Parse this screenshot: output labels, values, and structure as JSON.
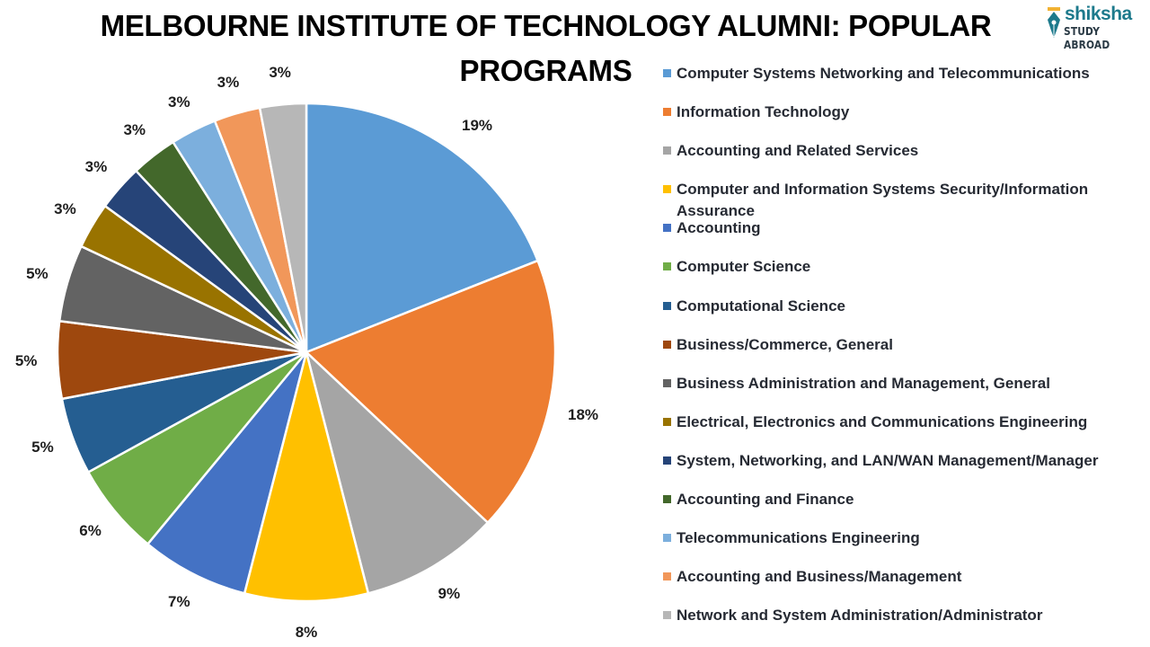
{
  "header": {
    "title": "MELBOURNE INSTITUTE OF TECHNOLOGY ALUMNI: POPULAR PROGRAMS",
    "logo": {
      "brand": "shiksha",
      "sub": "STUDY ABROAD",
      "icon": "pen-nib-icon"
    }
  },
  "chart_data": {
    "type": "pie",
    "title": "MELBOURNE INSTITUTE OF TECHNOLOGY ALUMNI: POPULAR PROGRAMS",
    "legend_position": "right",
    "start_angle_deg": 0,
    "direction": "clockwise",
    "categories": [
      "Computer Systems Networking and Telecommunications",
      "Information Technology",
      "Accounting and Related Services",
      "Computer and Information Systems Security/Information Assurance",
      "Accounting",
      "Computer Science",
      "Computational Science",
      "Business/Commerce, General",
      "Business Administration and Management, General",
      "Electrical, Electronics and Communications Engineering",
      "System, Networking, and LAN/WAN Management/Manager",
      "Accounting and Finance",
      "Telecommunications Engineering",
      "Accounting and Business/Management",
      "Network and System Administration/Administrator"
    ],
    "values": [
      19,
      18,
      9,
      8,
      7,
      6,
      5,
      5,
      5,
      3,
      3,
      3,
      3,
      3,
      3
    ],
    "labels": [
      "19%",
      "18%",
      "9%",
      "8%",
      "7%",
      "6%",
      "5%",
      "5%",
      "5%",
      "3%",
      "3%",
      "3%",
      "3%",
      "3%",
      "3%"
    ],
    "colors": [
      "#5b9bd5",
      "#ed7d31",
      "#a5a5a5",
      "#ffc000",
      "#4472c4",
      "#70ad47",
      "#255e91",
      "#9e480e",
      "#636363",
      "#997300",
      "#264478",
      "#43682b",
      "#7cafdd",
      "#f1975a",
      "#b7b7b7"
    ]
  },
  "legend": {
    "items": [
      {
        "label": "Computer Systems Networking and Telecommunications",
        "color": "#5b9bd5"
      },
      {
        "label": "Information Technology",
        "color": "#ed7d31"
      },
      {
        "label": "Accounting and Related Services",
        "color": "#a5a5a5"
      },
      {
        "label": "Computer and Information Systems Security/Information Assurance",
        "color": "#ffc000"
      },
      {
        "label": "Accounting",
        "color": "#4472c4"
      },
      {
        "label": "Computer Science",
        "color": "#70ad47"
      },
      {
        "label": "Computational Science",
        "color": "#255e91"
      },
      {
        "label": "Business/Commerce, General",
        "color": "#9e480e"
      },
      {
        "label": "Business Administration and Management, General",
        "color": "#636363"
      },
      {
        "label": "Electrical, Electronics and Communications Engineering",
        "color": "#997300"
      },
      {
        "label": "System, Networking, and LAN/WAN Management/Manager",
        "color": "#264478"
      },
      {
        "label": "Accounting and Finance",
        "color": "#43682b"
      },
      {
        "label": "Telecommunications Engineering",
        "color": "#7cafdd"
      },
      {
        "label": "Accounting and Business/Management",
        "color": "#f1975a"
      },
      {
        "label": "Network and System Administration/Administrator",
        "color": "#b7b7b7"
      }
    ]
  }
}
